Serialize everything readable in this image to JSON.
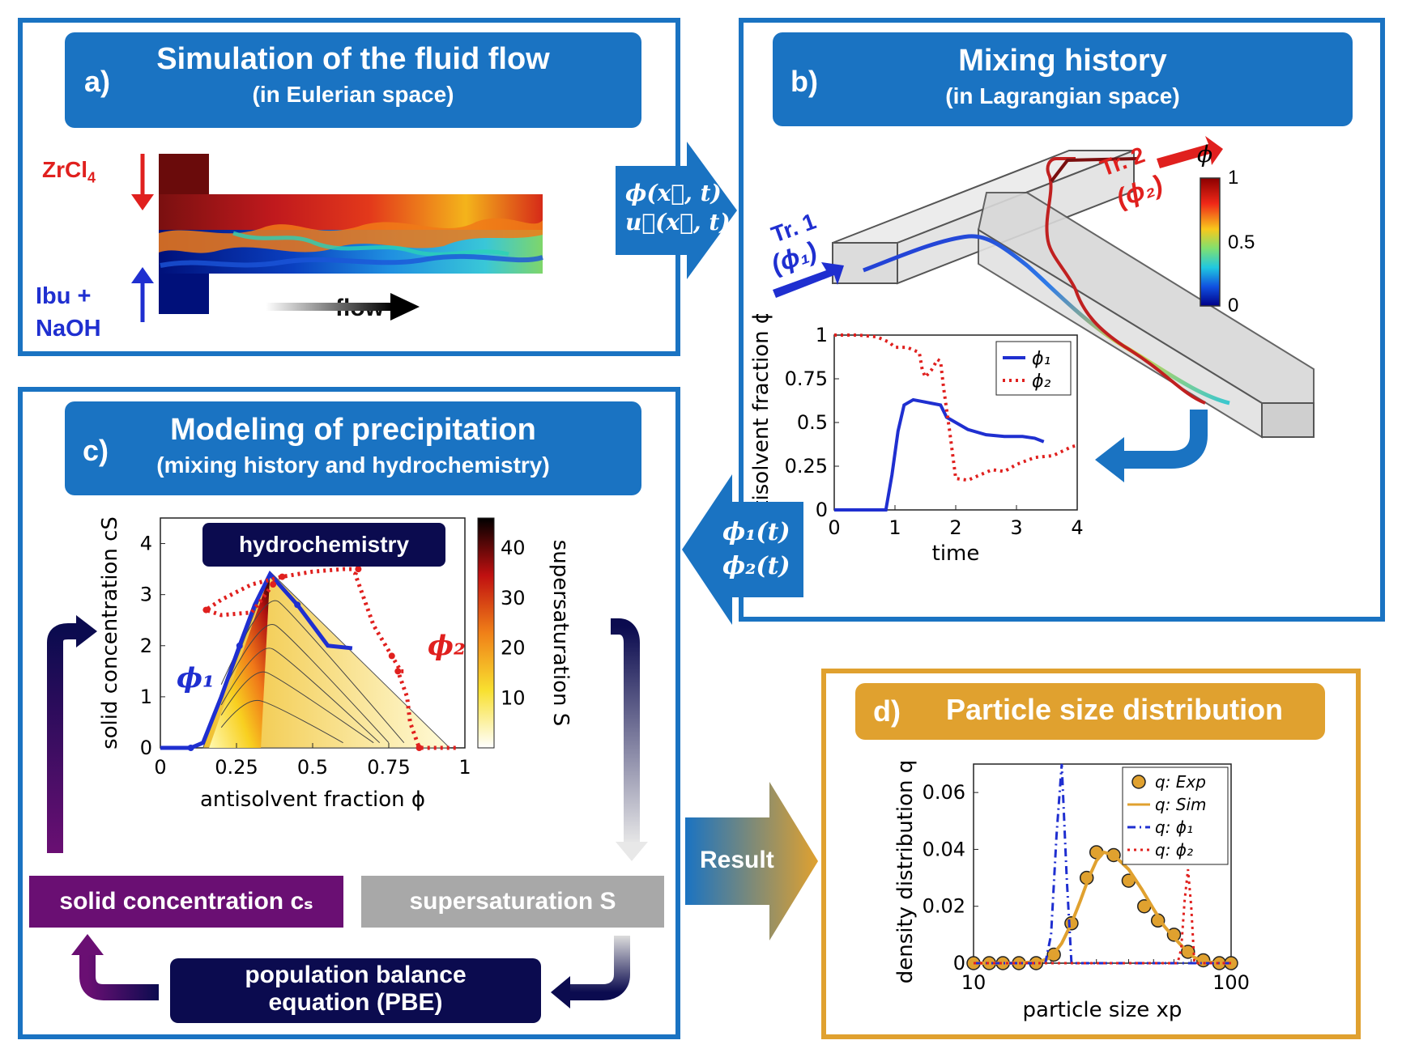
{
  "panel_a": {
    "label": "a)",
    "title": "Simulation of the fluid flow",
    "subtitle": "(in Eulerian space)",
    "inlet_top": "ZrCl",
    "inlet_top_sub": "4",
    "inlet_bottom_1": "Ibu +",
    "inlet_bottom_2": "NaOH",
    "flow_label": "flow"
  },
  "arrow_ab": {
    "line1": "ϕ(x⃗, t)",
    "line2": "u⃗(x⃗, t)"
  },
  "panel_b": {
    "label": "b)",
    "title": "Mixing history",
    "subtitle": "(in Lagrangian space)",
    "tr1": "Tr. 1",
    "tr1_phi": "(ϕ₁)",
    "tr2": "Tr. 2",
    "tr2_phi": "(ϕ₂)",
    "colorbar": {
      "label": "ϕ",
      "ticks": [
        "1",
        "0.5",
        "0"
      ]
    }
  },
  "arrow_bc": {
    "line1": "ϕ₁(t)",
    "line2": "ϕ₂(t)"
  },
  "panel_c": {
    "label": "c)",
    "title": "Modeling of precipitation",
    "subtitle": "(mixing history and hydrochemistry)",
    "plot_badge": "hydrochemistry",
    "phi1": "ϕ₁",
    "phi2": "ϕ₂",
    "colorbar": {
      "label": "supersaturation S",
      "ticks": [
        "40",
        "30",
        "20",
        "10"
      ]
    },
    "box_cs": "solid concentration cₛ",
    "box_S": "supersaturation S",
    "box_pbe_1": "population balance",
    "box_pbe_2": "equation (PBE)"
  },
  "arrow_cd": {
    "label": "Result"
  },
  "panel_d": {
    "label": "d)",
    "title": "Particle size distribution"
  },
  "colors": {
    "blue_frame": "#1a73c2",
    "orange_frame": "#e0a12f",
    "navy": "#0b0b4f",
    "purple": "#6a0f73",
    "grey": "#a8a8a8",
    "red": "#e0201e",
    "blue_line": "#1f2fd0"
  },
  "chart_data": [
    {
      "type": "line",
      "xlabel": "time",
      "ylabel": "antisolvent fraction ϕ",
      "xlim": [
        0,
        4
      ],
      "ylim": [
        0,
        1
      ],
      "xticks": [
        "0",
        "1",
        "2",
        "3",
        "4"
      ],
      "yticks": [
        "0",
        "0.25",
        "0.5",
        "0.75",
        "1"
      ],
      "legend": "top-right",
      "series": [
        {
          "name": "ϕ₁",
          "style": "solid",
          "color": "#1f2fd0",
          "x": [
            0,
            0.5,
            0.85,
            0.95,
            1.05,
            1.15,
            1.3,
            1.45,
            1.6,
            1.75,
            1.85,
            2.0,
            2.2,
            2.5,
            2.8,
            3.1,
            3.3,
            3.45
          ],
          "y": [
            0,
            0,
            0,
            0.2,
            0.45,
            0.6,
            0.63,
            0.62,
            0.61,
            0.6,
            0.53,
            0.5,
            0.46,
            0.43,
            0.42,
            0.42,
            0.41,
            0.39
          ]
        },
        {
          "name": "ϕ₂",
          "style": "dotted",
          "color": "#e0201e",
          "x": [
            0,
            0.4,
            0.7,
            0.9,
            1.0,
            1.2,
            1.4,
            1.45,
            1.5,
            1.6,
            1.7,
            1.75,
            1.8,
            1.9,
            2.0,
            2.2,
            2.4,
            2.6,
            2.8,
            3.0,
            3.3,
            3.6,
            3.9,
            4.0
          ],
          "y": [
            1,
            1,
            0.99,
            0.96,
            0.93,
            0.93,
            0.9,
            0.8,
            0.76,
            0.8,
            0.86,
            0.85,
            0.7,
            0.45,
            0.18,
            0.17,
            0.2,
            0.23,
            0.22,
            0.26,
            0.3,
            0.31,
            0.36,
            0.37
          ]
        }
      ]
    },
    {
      "type": "heatmap",
      "xlabel": "antisolvent fraction ϕ",
      "ylabel": "solid concentration cS",
      "xlim": [
        0,
        1
      ],
      "ylim": [
        0,
        4.5
      ],
      "xticks": [
        "0",
        "0.25",
        "0.5",
        "0.75",
        "1"
      ],
      "yticks": [
        "0",
        "1",
        "2",
        "3",
        "4"
      ],
      "colorbar_range": [
        0,
        46
      ],
      "series": [
        {
          "name": "ϕ₁",
          "style": "solid-arrows",
          "color": "#1f2fd0",
          "x": [
            0,
            0.1,
            0.14,
            0.2,
            0.26,
            0.31,
            0.36,
            0.45,
            0.55,
            0.63
          ],
          "y": [
            0,
            0,
            0.1,
            1.0,
            2.0,
            2.8,
            3.4,
            2.8,
            2.0,
            1.95
          ]
        },
        {
          "name": "ϕ₂",
          "style": "dotted-arrows",
          "color": "#e0201e",
          "x": [
            0.97,
            0.85,
            0.82,
            0.81,
            0.78,
            0.8,
            0.79,
            0.76,
            0.7,
            0.64,
            0.65,
            0.6,
            0.5,
            0.4,
            0.3,
            0.2,
            0.15,
            0.2,
            0.3,
            0.37
          ],
          "y": [
            0,
            0,
            0.5,
            1.0,
            1.5,
            1.5,
            1.5,
            1.8,
            2.4,
            3.4,
            3.5,
            3.5,
            3.45,
            3.35,
            3.2,
            2.9,
            2.7,
            2.6,
            2.65,
            3.2
          ]
        }
      ]
    },
    {
      "type": "scatter",
      "xlabel": "particle size xp",
      "ylabel": "density distribution q",
      "xscale": "log",
      "xlim": [
        10,
        100
      ],
      "ylim": [
        0,
        0.07
      ],
      "xticks": [
        "10",
        "100"
      ],
      "yticks": [
        "0",
        "0.02",
        "0.04",
        "0.06"
      ],
      "legend": "top-right",
      "series": [
        {
          "name": "q: Exp",
          "style": "markers",
          "color": "#e0a12f",
          "x": [
            10,
            11.5,
            13,
            15,
            17.5,
            20.5,
            24,
            27.5,
            30,
            35,
            40,
            46,
            52,
            60,
            68,
            78,
            90,
            100
          ],
          "y": [
            0,
            0,
            0,
            0,
            0,
            0.003,
            0.014,
            0.03,
            0.039,
            0.038,
            0.029,
            0.02,
            0.015,
            0.01,
            0.004,
            0.001,
            0,
            0
          ]
        },
        {
          "name": "q: Sim",
          "style": "solid",
          "color": "#e0a12f",
          "x": [
            10,
            14,
            18,
            20,
            22,
            24,
            26,
            28,
            30,
            32,
            35,
            40,
            45,
            50,
            55,
            60,
            66,
            72,
            80,
            90,
            100
          ],
          "y": [
            0,
            0,
            0.0005,
            0.002,
            0.007,
            0.014,
            0.022,
            0.03,
            0.036,
            0.039,
            0.038,
            0.033,
            0.026,
            0.019,
            0.013,
            0.009,
            0.005,
            0.002,
            0.0005,
            0,
            0
          ]
        },
        {
          "name": "q: ϕ₁",
          "style": "dashdot",
          "color": "#1f2fd0",
          "x": [
            10,
            19,
            20,
            21,
            22,
            23,
            24,
            100
          ],
          "y": [
            0,
            0,
            0.01,
            0.045,
            0.07,
            0.03,
            0,
            0
          ]
        },
        {
          "name": "q: ϕ₂",
          "style": "dotted",
          "color": "#e0201e",
          "x": [
            10,
            62,
            64,
            66,
            68,
            70,
            72,
            100
          ],
          "y": [
            0,
            0,
            0.005,
            0.022,
            0.033,
            0.02,
            0,
            0
          ]
        }
      ]
    }
  ]
}
